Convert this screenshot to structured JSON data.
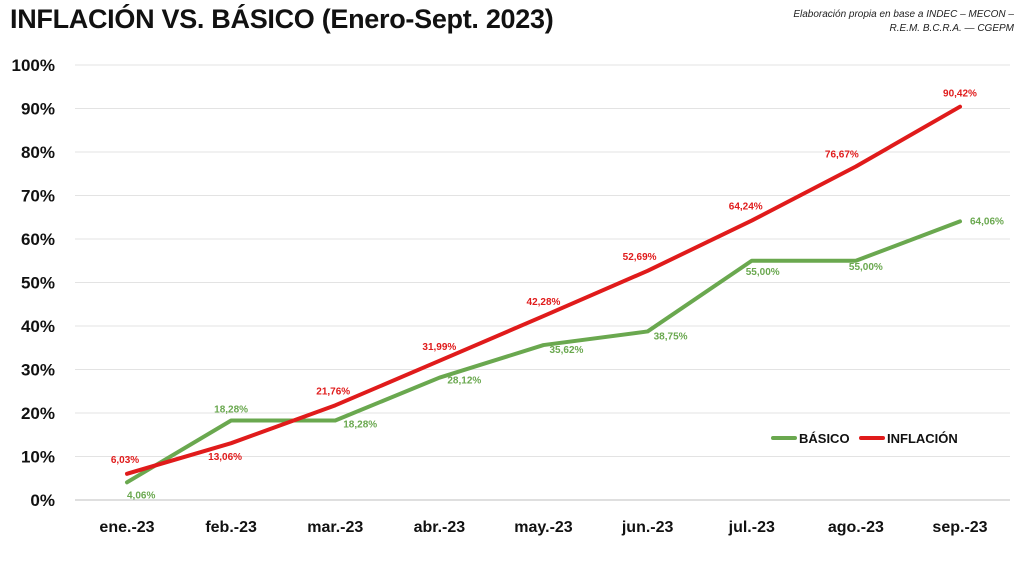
{
  "title": "INFLACIÓN VS. BÁSICO (Enero-Sept. 2023)",
  "source": [
    "Elaboración propia en base a INDEC – MECON –",
    "R.E.M. B.C.R.A. — CGEPM"
  ],
  "chart_data": {
    "type": "line",
    "title": "INFLACIÓN VS. BÁSICO (Enero-Sept. 2023)",
    "xlabel": "",
    "ylabel": "",
    "categories": [
      "ene.-23",
      "feb.-23",
      "mar.-23",
      "abr.-23",
      "may.-23",
      "jun.-23",
      "jul.-23",
      "ago.-23",
      "sep.-23"
    ],
    "ylim": [
      0,
      100
    ],
    "yticks": [
      "0%",
      "10%",
      "20%",
      "30%",
      "40%",
      "50%",
      "60%",
      "70%",
      "80%",
      "90%",
      "100%"
    ],
    "grid": true,
    "legend_position": "bottom-right",
    "series": [
      {
        "name": "BÁSICO",
        "color": "#6aa84f",
        "values": [
          4.06,
          18.28,
          18.28,
          28.12,
          35.62,
          38.75,
          55.0,
          55.0,
          64.06
        ],
        "labels": [
          "4,06%",
          "18,28%",
          "18,28%",
          "28,12%",
          "35,62%",
          "38,75%",
          "55,00%",
          "55,00%",
          "64,06%"
        ]
      },
      {
        "name": "INFLACIÓN",
        "color": "#e01b1b",
        "values": [
          6.03,
          13.06,
          21.76,
          31.99,
          42.28,
          52.69,
          64.24,
          76.67,
          90.42
        ],
        "labels": [
          "6,03%",
          "13,06%",
          "21,76%",
          "31,99%",
          "42,28%",
          "52,69%",
          "64,24%",
          "76,67%",
          "90,42%"
        ]
      }
    ]
  }
}
